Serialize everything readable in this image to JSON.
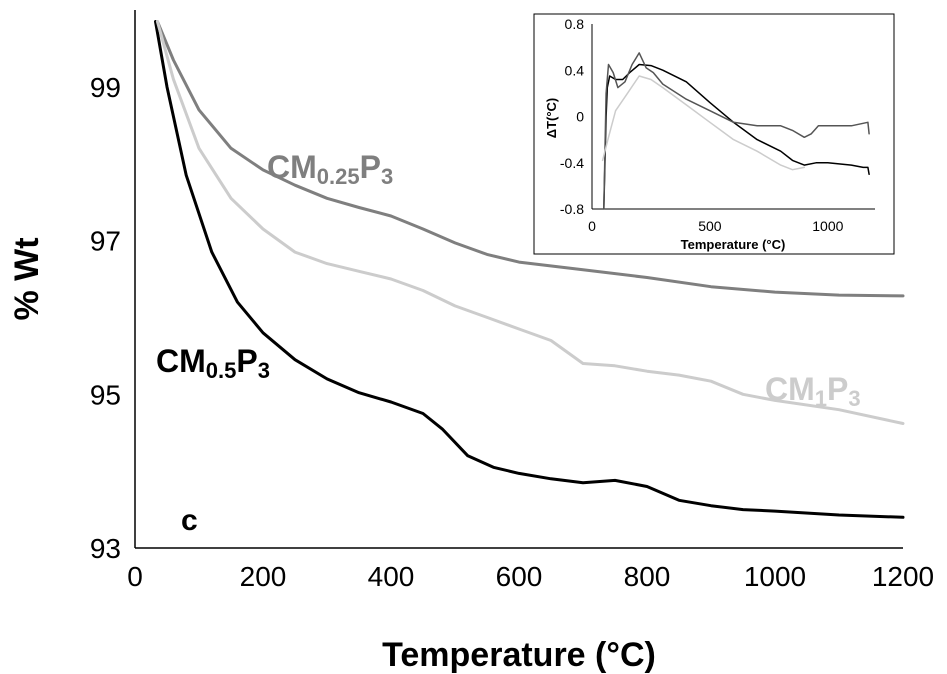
{
  "chart_data": [
    {
      "type": "line",
      "xlabel": "Temperature (°C)",
      "ylabel": "% Wt",
      "xlim": [
        0,
        1200
      ],
      "ylim": [
        93,
        100
      ],
      "xticks": [
        "0",
        "200",
        "400",
        "600",
        "800",
        "1000",
        "1200"
      ],
      "yticks": [
        "93",
        "95",
        "97",
        "99"
      ],
      "panel_label": "c",
      "grid": false,
      "series": [
        {
          "name": "CM0.25P3",
          "label_main": "CM",
          "label_sub1": "0.25",
          "label_mid": "P",
          "label_sub2": "3",
          "color": "#7f7f7f",
          "x": [
            35,
            60,
            100,
            150,
            200,
            250,
            300,
            350,
            400,
            450,
            500,
            550,
            600,
            700,
            800,
            900,
            1000,
            1100,
            1200
          ],
          "y": [
            99.85,
            99.35,
            98.7,
            98.2,
            97.92,
            97.72,
            97.55,
            97.43,
            97.32,
            97.15,
            96.97,
            96.82,
            96.72,
            96.62,
            96.52,
            96.4,
            96.33,
            96.29,
            96.28
          ]
        },
        {
          "name": "CM0.5P3",
          "label_main": "CM",
          "label_sub1": "0.5",
          "label_mid": "P",
          "label_sub2": "3",
          "color": "#000000",
          "x": [
            32,
            50,
            80,
            120,
            160,
            200,
            250,
            300,
            350,
            400,
            450,
            480,
            520,
            560,
            600,
            650,
            700,
            750,
            800,
            850,
            900,
            950,
            1000,
            1100,
            1200
          ],
          "y": [
            99.85,
            99.0,
            97.85,
            96.85,
            96.2,
            95.8,
            95.45,
            95.2,
            95.02,
            94.9,
            94.75,
            94.55,
            94.2,
            94.05,
            93.97,
            93.9,
            93.85,
            93.88,
            93.8,
            93.62,
            93.55,
            93.5,
            93.48,
            93.43,
            93.4
          ]
        },
        {
          "name": "CM1P3",
          "label_main": "CM",
          "label_sub1": "1",
          "label_mid": "P",
          "label_sub2": "3",
          "color": "#cccccc",
          "x": [
            35,
            60,
            100,
            150,
            200,
            250,
            300,
            350,
            400,
            450,
            500,
            550,
            600,
            650,
            700,
            750,
            800,
            850,
            900,
            950,
            1000,
            1100,
            1200
          ],
          "y": [
            99.85,
            99.1,
            98.2,
            97.55,
            97.15,
            96.85,
            96.7,
            96.6,
            96.5,
            96.35,
            96.15,
            96.0,
            95.85,
            95.7,
            95.4,
            95.37,
            95.3,
            95.25,
            95.17,
            95.0,
            94.92,
            94.8,
            94.62
          ]
        }
      ]
    },
    {
      "type": "line",
      "xlabel": "Temperature (°C)",
      "ylabel": "ΔT(°C)",
      "xlim": [
        0,
        1200
      ],
      "ylim": [
        -0.8,
        0.8
      ],
      "xticks": [
        "0",
        "500",
        "1000"
      ],
      "yticks": [
        "0.8",
        "0.4",
        "0",
        "-0.4",
        "-0.8"
      ],
      "series": [
        {
          "color": "#000000",
          "x": [
            50,
            60,
            65,
            75,
            100,
            130,
            160,
            200,
            250,
            300,
            400,
            500,
            600,
            700,
            800,
            850,
            900,
            950,
            1000,
            1100,
            1150,
            1170,
            1175
          ],
          "y": [
            -0.8,
            0.0,
            0.25,
            0.35,
            0.32,
            0.32,
            0.38,
            0.45,
            0.44,
            0.4,
            0.3,
            0.12,
            -0.05,
            -0.2,
            -0.3,
            -0.38,
            -0.42,
            -0.4,
            -0.4,
            -0.42,
            -0.44,
            -0.44,
            -0.5
          ]
        },
        {
          "color": "#555555",
          "x": [
            50,
            60,
            70,
            90,
            110,
            140,
            170,
            200,
            230,
            260,
            300,
            400,
            500,
            600,
            700,
            800,
            850,
            900,
            930,
            960,
            1000,
            1100,
            1170,
            1175
          ],
          "y": [
            -0.8,
            0.2,
            0.45,
            0.38,
            0.25,
            0.3,
            0.45,
            0.55,
            0.42,
            0.38,
            0.28,
            0.15,
            0.05,
            -0.05,
            -0.08,
            -0.08,
            -0.12,
            -0.18,
            -0.15,
            -0.08,
            -0.08,
            -0.08,
            -0.05,
            -0.15
          ]
        },
        {
          "color": "#cccccc",
          "x": [
            45,
            70,
            100,
            150,
            200,
            250,
            300,
            400,
            500,
            600,
            700,
            800,
            850,
            900
          ],
          "y": [
            -0.38,
            -0.18,
            0.05,
            0.2,
            0.35,
            0.32,
            0.25,
            0.1,
            -0.05,
            -0.2,
            -0.3,
            -0.42,
            -0.46,
            -0.44
          ]
        }
      ]
    }
  ]
}
